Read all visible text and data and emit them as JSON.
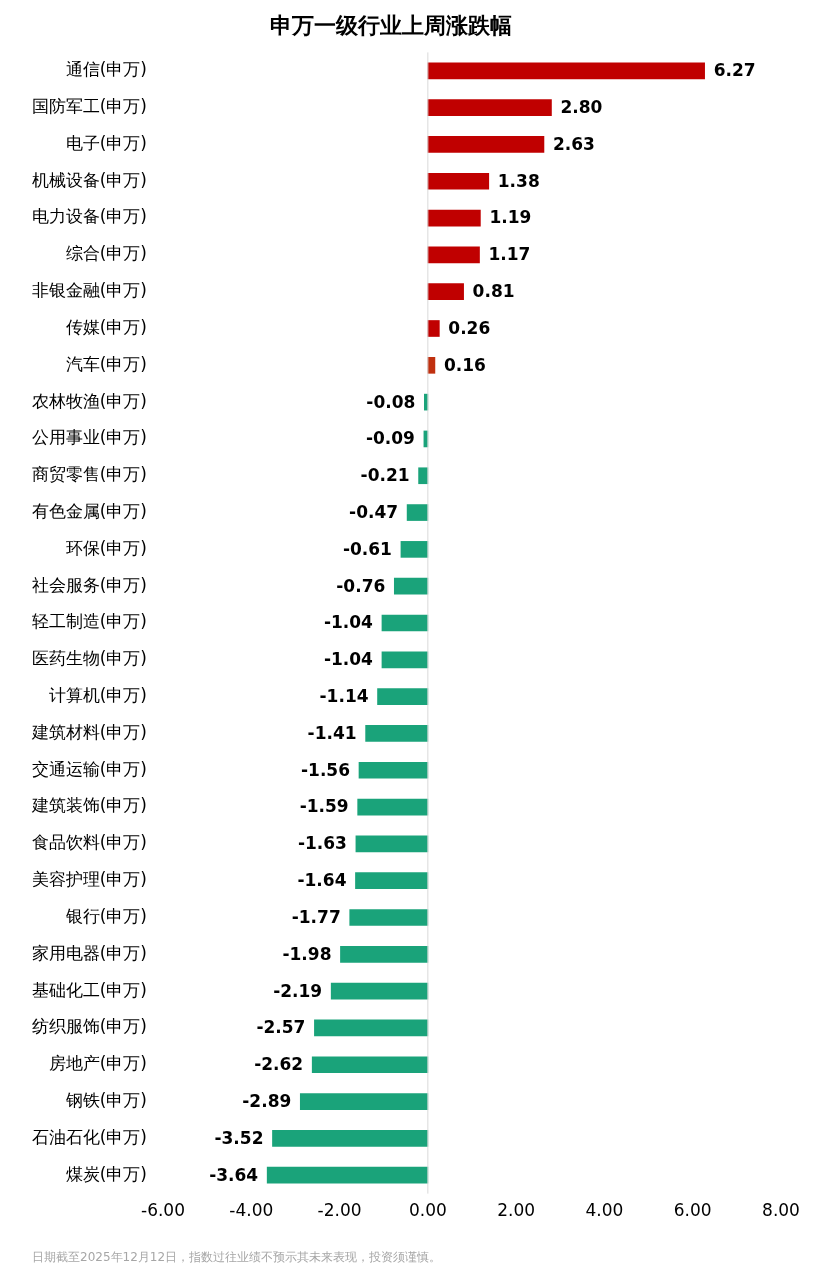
{
  "chart_data": {
    "type": "bar",
    "orientation": "horizontal",
    "title": "申万一级行业上周涨跌幅",
    "categories": [
      "通信(申万)",
      "国防军工(申万)",
      "电子(申万)",
      "机械设备(申万)",
      "电力设备(申万)",
      "综合(申万)",
      "非银金融(申万)",
      "传媒(申万)",
      "汽车(申万)",
      "农林牧渔(申万)",
      "公用事业(申万)",
      "商贸零售(申万)",
      "有色金属(申万)",
      "环保(申万)",
      "社会服务(申万)",
      "轻工制造(申万)",
      "医药生物(申万)",
      "计算机(申万)",
      "建筑材料(申万)",
      "交通运输(申万)",
      "建筑装饰(申万)",
      "食品饮料(申万)",
      "美容护理(申万)",
      "银行(申万)",
      "家用电器(申万)",
      "基础化工(申万)",
      "纺织服饰(申万)",
      "房地产(申万)",
      "钢铁(申万)",
      "石油石化(申万)",
      "煤炭(申万)"
    ],
    "values": [
      6.27,
      2.8,
      2.63,
      1.38,
      1.19,
      1.17,
      0.81,
      0.26,
      0.16,
      -0.08,
      -0.09,
      -0.21,
      -0.47,
      -0.61,
      -0.76,
      -1.04,
      -1.04,
      -1.14,
      -1.41,
      -1.56,
      -1.59,
      -1.63,
      -1.64,
      -1.77,
      -1.98,
      -2.19,
      -2.57,
      -2.62,
      -2.89,
      -3.52,
      -3.64
    ],
    "value_labels": [
      "6.27",
      "2.80",
      "2.63",
      "1.38",
      "1.19",
      "1.17",
      "0.81",
      "0.26",
      "0.16",
      "-0.08",
      "-0.09",
      "-0.21",
      "-0.47",
      "-0.61",
      "-0.76",
      "-1.04",
      "-1.04",
      "-1.14",
      "-1.41",
      "-1.56",
      "-1.59",
      "-1.63",
      "-1.64",
      "-1.77",
      "-1.98",
      "-2.19",
      "-2.57",
      "-2.62",
      "-2.89",
      "-3.52",
      "-3.64"
    ],
    "colors": [
      "#c00000",
      "#c00000",
      "#c00000",
      "#c00000",
      "#c00000",
      "#c00000",
      "#c00000",
      "#c00000",
      "#c0300f",
      "#1aa37a",
      "#1aa37a",
      "#1aa37a",
      "#1aa37a",
      "#1aa37a",
      "#1aa37a",
      "#1aa37a",
      "#1aa37a",
      "#1aa37a",
      "#1aa37a",
      "#1aa37a",
      "#1aa37a",
      "#1aa37a",
      "#1aa37a",
      "#1aa37a",
      "#1aa37a",
      "#1aa37a",
      "#1aa37a",
      "#1aa37a",
      "#1aa37a",
      "#1aa37a",
      "#1aa37a"
    ],
    "xlim": [
      -6,
      8
    ],
    "xticks": [
      {
        "value": -6,
        "label": "-6.00"
      },
      {
        "value": -4,
        "label": "-4.00"
      },
      {
        "value": -2,
        "label": "-2.00"
      },
      {
        "value": 0,
        "label": "0.00"
      },
      {
        "value": 2,
        "label": "2.00"
      },
      {
        "value": 4,
        "label": "4.00"
      },
      {
        "value": 6,
        "label": "6.00"
      },
      {
        "value": 8,
        "label": "8.00"
      }
    ],
    "ref_lines": [
      {
        "axis": "x",
        "value": 0,
        "color": "#d9d9d9"
      }
    ],
    "grid": false,
    "legend": false,
    "annotations": [
      "日期截至2025年12月12日，指数过往业绩不预示其未来表现，投资须谨慎。"
    ]
  }
}
